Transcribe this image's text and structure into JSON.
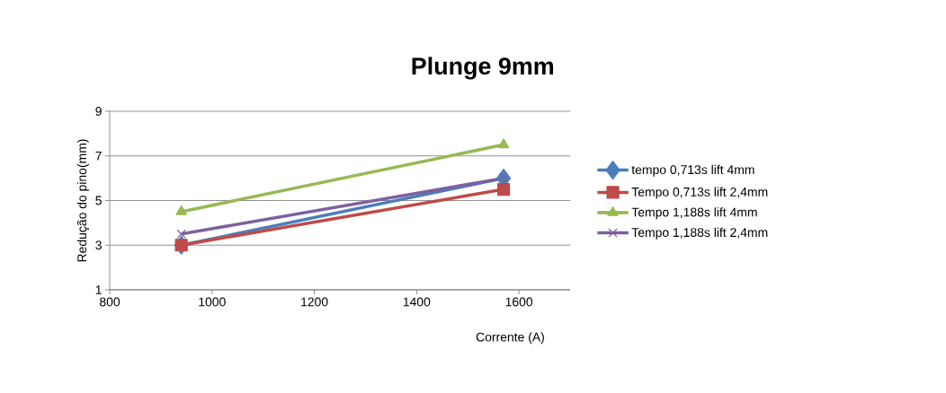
{
  "chart_data": {
    "type": "line",
    "title": "Plunge 9mm",
    "xlabel": "Corrente (A)",
    "ylabel": "Redução do pino(mm)",
    "x": [
      940,
      1570
    ],
    "series": [
      {
        "name": "tempo 0,713s lift 4mm",
        "color": "#4a7ebb",
        "marker": "diamond",
        "values": [
          3,
          6
        ]
      },
      {
        "name": "Tempo 0,713s lift 2,4mm",
        "color": "#be4b48",
        "marker": "square",
        "values": [
          3,
          5.5
        ]
      },
      {
        "name": "Tempo 1,188s lift 4mm",
        "color": "#98b954",
        "marker": "triangle",
        "values": [
          4.5,
          7.5
        ]
      },
      {
        "name": "Tempo 1,188s lift 2,4mm",
        "color": "#7d60a0",
        "marker": "cross",
        "values": [
          3.5,
          6
        ]
      }
    ],
    "xlim": [
      800,
      1700
    ],
    "xticks": [
      800,
      1000,
      1200,
      1400,
      1600
    ],
    "ylim": [
      1,
      9
    ],
    "yticks": [
      1,
      3,
      5,
      7,
      9
    ],
    "grid": "y",
    "legend": "right",
    "line_style": "solid"
  }
}
